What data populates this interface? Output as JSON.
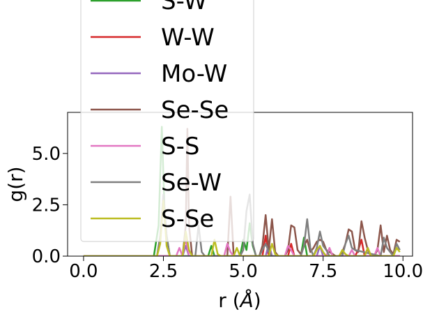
{
  "chart_data": {
    "type": "line",
    "title": "",
    "xlabel": "r (",
    "xlabel_unit": "Å",
    "xlabel_close": ")",
    "ylabel": "g(r)",
    "xlim": [
      -0.5,
      10.3
    ],
    "ylim": [
      0,
      7.0
    ],
    "xticks": [
      0.0,
      2.5,
      5.0,
      7.5,
      10.0
    ],
    "xtick_labels": [
      "0.0",
      "2.5",
      "5.0",
      "7.5",
      "10.0"
    ],
    "yticks": [
      0.0,
      2.5,
      5.0
    ],
    "ytick_labels": [
      "0.0",
      "2.5",
      "5.0"
    ],
    "grid": false,
    "legend_placement": "upper-left, extending above the axes",
    "legend_partial_label": "S-W",
    "series": [
      {
        "name": "S-W",
        "color": "#2ca02c",
        "x": [
          0.0,
          2.2,
          2.35,
          2.45,
          2.55,
          2.7,
          3.9,
          4.0,
          4.1,
          4.2,
          4.9,
          5.0,
          5.1,
          5.2,
          5.3,
          5.4,
          6.8,
          6.9,
          7.0,
          7.1,
          9.9
        ],
        "y": [
          0.0,
          0.0,
          1.5,
          6.3,
          1.5,
          0.0,
          0.0,
          0.5,
          0.0,
          0.0,
          0.0,
          0.8,
          0.3,
          1.6,
          0.5,
          0.0,
          0.0,
          0.9,
          0.0,
          0.0,
          0.0
        ]
      },
      {
        "name": "W-W",
        "color": "#d62728",
        "x": [
          0.0,
          3.0,
          3.1,
          3.2,
          3.3,
          3.4,
          5.6,
          5.7,
          5.8,
          6.4,
          6.5,
          6.6,
          8.5,
          8.6,
          8.7,
          8.8,
          9.9
        ],
        "y": [
          0.0,
          0.0,
          0.0,
          0.9,
          0.0,
          0.0,
          0.0,
          1.0,
          0.0,
          0.0,
          0.6,
          0.0,
          0.0,
          0.3,
          0.8,
          0.0,
          0.0
        ]
      },
      {
        "name": "Mo-W",
        "color": "#9467bd",
        "x": [
          0.0,
          3.1,
          3.2,
          3.3,
          3.4,
          5.7,
          5.8,
          5.9,
          7.3,
          7.4,
          7.5,
          8.8,
          8.9,
          9.0,
          9.9
        ],
        "y": [
          0.0,
          0.0,
          0.5,
          0.0,
          0.0,
          0.0,
          0.6,
          0.0,
          0.0,
          0.5,
          0.0,
          0.0,
          0.4,
          0.0,
          0.0
        ]
      },
      {
        "name": "Se-Se",
        "color": "#8c564b",
        "x": [
          0.0,
          3.1,
          3.2,
          3.25,
          3.3,
          3.4,
          4.5,
          4.6,
          4.7,
          5.5,
          5.6,
          5.7,
          5.8,
          5.9,
          6.0,
          6.1,
          6.2,
          6.3,
          6.4,
          6.5,
          6.6,
          6.7,
          6.8,
          6.9,
          7.0,
          7.1,
          7.2,
          7.3,
          7.4,
          7.5,
          7.6,
          7.7,
          7.8,
          7.9,
          8.0,
          8.1,
          8.2,
          8.3,
          8.4,
          8.5,
          8.6,
          8.7,
          8.8,
          8.9,
          9.0,
          9.1,
          9.2,
          9.3,
          9.4,
          9.5,
          9.6,
          9.7,
          9.8,
          9.9
        ],
        "y": [
          0.0,
          0.0,
          1.5,
          6.2,
          1.5,
          0.0,
          0.0,
          2.9,
          0.0,
          0.0,
          0.5,
          2.0,
          0.3,
          1.8,
          0.2,
          0.0,
          0.0,
          0.0,
          0.3,
          1.5,
          1.4,
          0.3,
          0.1,
          0.5,
          0.8,
          0.2,
          0.4,
          0.7,
          0.8,
          0.7,
          0.3,
          0.2,
          0.1,
          0.0,
          0.0,
          0.2,
          0.6,
          1.3,
          1.2,
          0.3,
          0.2,
          1.7,
          0.9,
          0.3,
          0.0,
          0.0,
          0.3,
          1.5,
          0.2,
          1.0,
          0.3,
          0.1,
          0.8,
          0.7
        ]
      },
      {
        "name": "S-S",
        "color": "#e377c2",
        "x": [
          0.0,
          2.9,
          3.0,
          3.1,
          3.2,
          3.3,
          4.4,
          4.5,
          4.6,
          4.7,
          4.8,
          6.3,
          6.4,
          6.5,
          6.6,
          7.6,
          7.7,
          7.8,
          8.3,
          8.4,
          8.5,
          9.1,
          9.2,
          9.3,
          9.9
        ],
        "y": [
          0.0,
          0.0,
          0.4,
          0.0,
          0.9,
          0.0,
          0.0,
          0.6,
          0.2,
          0.0,
          0.0,
          0.0,
          0.5,
          0.3,
          0.0,
          0.0,
          0.4,
          0.0,
          0.0,
          0.3,
          0.0,
          0.0,
          0.4,
          0.0,
          0.0
        ]
      },
      {
        "name": "Se-W",
        "color": "#7f7f7f",
        "x": [
          0.0,
          2.3,
          2.4,
          2.5,
          2.6,
          2.7,
          3.5,
          3.6,
          3.7,
          3.8,
          3.9,
          4.9,
          5.0,
          5.1,
          5.2,
          5.3,
          5.4,
          5.5,
          5.6,
          5.7,
          5.8,
          5.9,
          6.0,
          6.8,
          6.9,
          7.0,
          7.1,
          7.2,
          7.3,
          7.4,
          7.5,
          7.6,
          7.7,
          8.1,
          8.2,
          8.3,
          8.4,
          8.5,
          9.3,
          9.4,
          9.5,
          9.6,
          9.7,
          9.8,
          9.9
        ],
        "y": [
          0.0,
          0.0,
          1.0,
          3.0,
          1.0,
          0.0,
          0.0,
          1.5,
          0.2,
          0.0,
          0.0,
          0.0,
          0.3,
          2.2,
          3.0,
          0.6,
          0.0,
          0.0,
          0.3,
          0.6,
          0.2,
          0.0,
          0.0,
          0.0,
          0.5,
          1.8,
          0.4,
          0.0,
          0.4,
          1.2,
          0.5,
          0.3,
          0.0,
          0.0,
          0.6,
          1.0,
          0.4,
          0.3,
          0.0,
          0.9,
          0.4,
          0.2,
          0.0,
          0.6,
          0.3
        ]
      },
      {
        "name": "S-Se",
        "color": "#bcbd22",
        "x": [
          0.0,
          2.3,
          2.4,
          2.5,
          2.6,
          2.7,
          3.1,
          3.2,
          3.3,
          3.4,
          4.0,
          4.1,
          4.2,
          4.3,
          4.7,
          4.8,
          4.9,
          5.0,
          5.8,
          5.9,
          6.0,
          6.1,
          7.2,
          7.3,
          7.4,
          7.5,
          7.6,
          8.0,
          8.1,
          8.2,
          8.3,
          8.8,
          8.9,
          9.0,
          9.7,
          9.8,
          9.9
        ],
        "y": [
          0.0,
          0.0,
          0.6,
          2.7,
          0.5,
          0.0,
          0.0,
          1.2,
          0.3,
          0.0,
          0.0,
          0.8,
          0.1,
          0.0,
          0.0,
          0.4,
          0.0,
          0.0,
          0.0,
          0.6,
          0.1,
          0.0,
          0.0,
          0.3,
          0.5,
          0.2,
          0.0,
          0.0,
          0.3,
          0.1,
          0.0,
          0.0,
          0.4,
          0.0,
          0.0,
          0.4,
          0.2
        ]
      }
    ]
  }
}
